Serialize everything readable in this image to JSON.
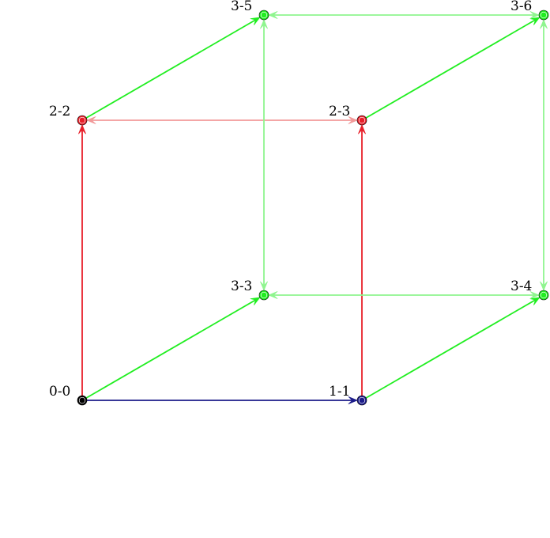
{
  "diagram": {
    "colors": {
      "red": "#e8202a",
      "red_light": "#f29a9a",
      "green": "#21ee21",
      "green_light": "#8ff58f",
      "blue": "#1c1c8a",
      "black": "#000000"
    },
    "nodes": [
      {
        "id": "n00",
        "label": "0-0",
        "color": "black"
      },
      {
        "id": "n11",
        "label": "1-1",
        "color": "blue"
      },
      {
        "id": "n22",
        "label": "2-2",
        "color": "red"
      },
      {
        "id": "n23",
        "label": "2-3",
        "color": "red"
      },
      {
        "id": "n33",
        "label": "3-3",
        "color": "green"
      },
      {
        "id": "n34",
        "label": "3-4",
        "color": "green"
      },
      {
        "id": "n35",
        "label": "3-5",
        "color": "green"
      },
      {
        "id": "n36",
        "label": "3-6",
        "color": "green"
      }
    ],
    "edges": [
      {
        "from": "n00",
        "to": "n11",
        "color": "blue",
        "bidirectional": false
      },
      {
        "from": "n00",
        "to": "n22",
        "color": "red",
        "bidirectional": false
      },
      {
        "from": "n11",
        "to": "n23",
        "color": "red",
        "bidirectional": false
      },
      {
        "from": "n22",
        "to": "n23",
        "color": "red_light",
        "bidirectional": true
      },
      {
        "from": "n00",
        "to": "n33",
        "color": "green",
        "bidirectional": false
      },
      {
        "from": "n11",
        "to": "n34",
        "color": "green",
        "bidirectional": false
      },
      {
        "from": "n22",
        "to": "n35",
        "color": "green",
        "bidirectional": false
      },
      {
        "from": "n23",
        "to": "n36",
        "color": "green",
        "bidirectional": false
      },
      {
        "from": "n33",
        "to": "n34",
        "color": "green_light",
        "bidirectional": true
      },
      {
        "from": "n33",
        "to": "n35",
        "color": "green_light",
        "bidirectional": true
      },
      {
        "from": "n35",
        "to": "n36",
        "color": "green_light",
        "bidirectional": true
      },
      {
        "from": "n34",
        "to": "n36",
        "color": "green_light",
        "bidirectional": true
      }
    ]
  }
}
